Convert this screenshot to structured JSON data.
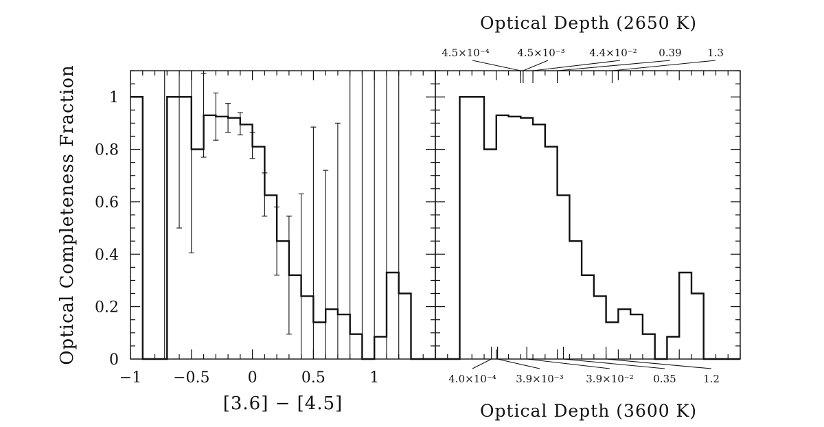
{
  "chart_data": [
    {
      "type": "histogram",
      "panel": "left",
      "xlabel": "[3.6] − [4.5]",
      "ylabel": "Optical Completeness Fraction",
      "xlim": [
        -1.0,
        1.5
      ],
      "ylim": [
        0,
        1.1
      ],
      "x_ticks": [
        -1,
        -0.5,
        0,
        0.5,
        1
      ],
      "x_tick_labels": [
        "−1",
        "−0.5",
        "0",
        "0.5",
        "1"
      ],
      "y_ticks": [
        0,
        0.2,
        0.4,
        0.6,
        0.8,
        1
      ],
      "y_tick_labels": [
        "0",
        "0.2",
        "0.4",
        "0.6",
        "0.8",
        "1"
      ],
      "bin_width": 0.1,
      "bin_centers": [
        -0.95,
        -0.85,
        -0.75,
        -0.65,
        -0.55,
        -0.45,
        -0.35,
        -0.25,
        -0.15,
        -0.05,
        0.05,
        0.15,
        0.25,
        0.35,
        0.45,
        0.55,
        0.65,
        0.75,
        0.85,
        0.95,
        1.05,
        1.15,
        1.25,
        1.35,
        1.45
      ],
      "values": [
        1.0,
        0.0,
        0.0,
        1.0,
        1.0,
        0.8,
        0.93,
        0.925,
        0.92,
        0.895,
        0.81,
        0.625,
        0.45,
        0.32,
        0.24,
        0.14,
        0.19,
        0.17,
        0.095,
        0.0,
        0.085,
        0.33,
        0.25,
        0.0,
        0.0
      ],
      "error_bars": [
        {
          "x": -0.72,
          "low": 0.0,
          "high": 1.1
        },
        {
          "x": -0.6,
          "low": 0.5,
          "high": 1.1
        },
        {
          "x": -0.5,
          "low": 0.405,
          "high": 1.1
        },
        {
          "x": -0.4,
          "low": 0.77,
          "high": 1.09
        },
        {
          "x": -0.3,
          "low": 0.835,
          "high": 1.015
        },
        {
          "x": -0.2,
          "low": 0.865,
          "high": 0.975
        },
        {
          "x": -0.1,
          "low": 0.855,
          "high": 0.94
        },
        {
          "x": 0.0,
          "low": 0.765,
          "high": 0.865
        },
        {
          "x": 0.1,
          "low": 0.545,
          "high": 0.71
        },
        {
          "x": 0.2,
          "low": 0.32,
          "high": 0.58
        },
        {
          "x": 0.3,
          "low": 0.095,
          "high": 0.545
        },
        {
          "x": 0.4,
          "low": 0.0,
          "high": 0.63
        },
        {
          "x": 0.5,
          "low": 0.0,
          "high": 0.885
        },
        {
          "x": 0.6,
          "low": 0.0,
          "high": 0.72
        },
        {
          "x": 0.7,
          "low": 0.0,
          "high": 0.9
        },
        {
          "x": 0.8,
          "low": 0.0,
          "high": 1.1
        },
        {
          "x": 0.9,
          "low": 0.0,
          "high": 1.1
        },
        {
          "x": 1.0,
          "low": 0.0,
          "high": 1.1
        },
        {
          "x": 1.1,
          "low": 0.0,
          "high": 1.1
        },
        {
          "x": 1.2,
          "low": 0.0,
          "high": 1.1
        }
      ]
    },
    {
      "type": "histogram",
      "panel": "right",
      "xlim": [
        -1.0,
        1.5
      ],
      "ylim": [
        0,
        1.1
      ],
      "bin_width": 0.1,
      "bin_centers": [
        -0.95,
        -0.85,
        -0.75,
        -0.65,
        -0.55,
        -0.45,
        -0.35,
        -0.25,
        -0.15,
        -0.05,
        0.05,
        0.15,
        0.25,
        0.35,
        0.45,
        0.55,
        0.65,
        0.75,
        0.85,
        0.95,
        1.05,
        1.15,
        1.25,
        1.35,
        1.45
      ],
      "values": [
        0.0,
        0.0,
        1.0,
        1.0,
        0.8,
        0.93,
        0.925,
        0.92,
        0.895,
        0.81,
        0.625,
        0.45,
        0.32,
        0.24,
        0.14,
        0.19,
        0.17,
        0.095,
        0.0,
        0.085,
        0.33,
        0.25,
        0.0,
        0.0,
        0.0
      ],
      "top_axis": {
        "title": "Optical Depth (2650 K)",
        "labels": [
          {
            "text": "4.5×10⁻⁴",
            "tick_x": -0.3
          },
          {
            "text": "4.5×10⁻³",
            "tick_x": -0.28
          },
          {
            "text": "4.4×10⁻²",
            "tick_x": -0.2
          },
          {
            "text": "0.39",
            "tick_x": 0.0
          },
          {
            "text": "1.3",
            "tick_x": 0.45
          }
        ]
      },
      "bottom_axis": {
        "title": "Optical Depth (3600 K)",
        "labels": [
          {
            "text": "4.0×10⁻⁴",
            "tick_x": -0.54
          },
          {
            "text": "3.9×10⁻³",
            "tick_x": -0.49
          },
          {
            "text": "3.9×10⁻²",
            "tick_x": -0.25
          },
          {
            "text": "0.35",
            "tick_x": 0.05
          },
          {
            "text": "1.2",
            "tick_x": 0.4
          }
        ]
      }
    }
  ]
}
